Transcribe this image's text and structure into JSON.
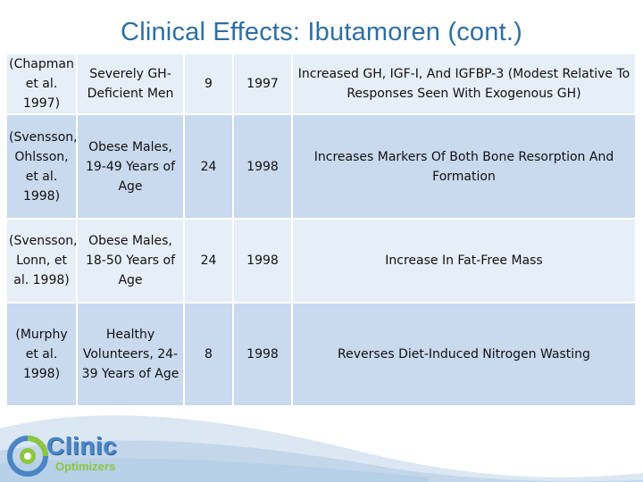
{
  "title": "Clinical Effects: Ibutamoren (cont.)",
  "rows": [
    {
      "citation": "(Chapman et al. 1997)",
      "population": "Severely GH-Deficient Men",
      "n": "9",
      "year": "1997",
      "finding": "Increased GH, IGF-I, And IGFBP-3 (Modest Relative To Responses Seen With Exogenous GH)"
    },
    {
      "citation": "(Svensson, Ohlsson, et al. 1998)",
      "population": "Obese Males, 19-49 Years of Age",
      "n": "24",
      "year": "1998",
      "finding": "Increases Markers Of Both Bone Resorption And Formation"
    },
    {
      "citation": "(Svensson, Lonn, et al. 1998)",
      "population": "Obese Males, 18-50 Years of Age",
      "n": "24",
      "year": "1998",
      "finding": "Increase In Fat-Free Mass"
    },
    {
      "citation": "(Murphy et al. 1998)",
      "population": "Healthy Volunteers, 24-39 Years of Age",
      "n": "8",
      "year": "1998",
      "finding": "Reverses Diet-Induced Nitrogen Wasting"
    }
  ],
  "logo": {
    "word1": "Clinic",
    "word2": "Optimizers"
  },
  "colors": {
    "title": "#2e6fa3",
    "row_light": "#e6eef7",
    "row_dark": "#c9d9ee",
    "logo_blue": "#4a86c5",
    "logo_green": "#8cc63f"
  }
}
